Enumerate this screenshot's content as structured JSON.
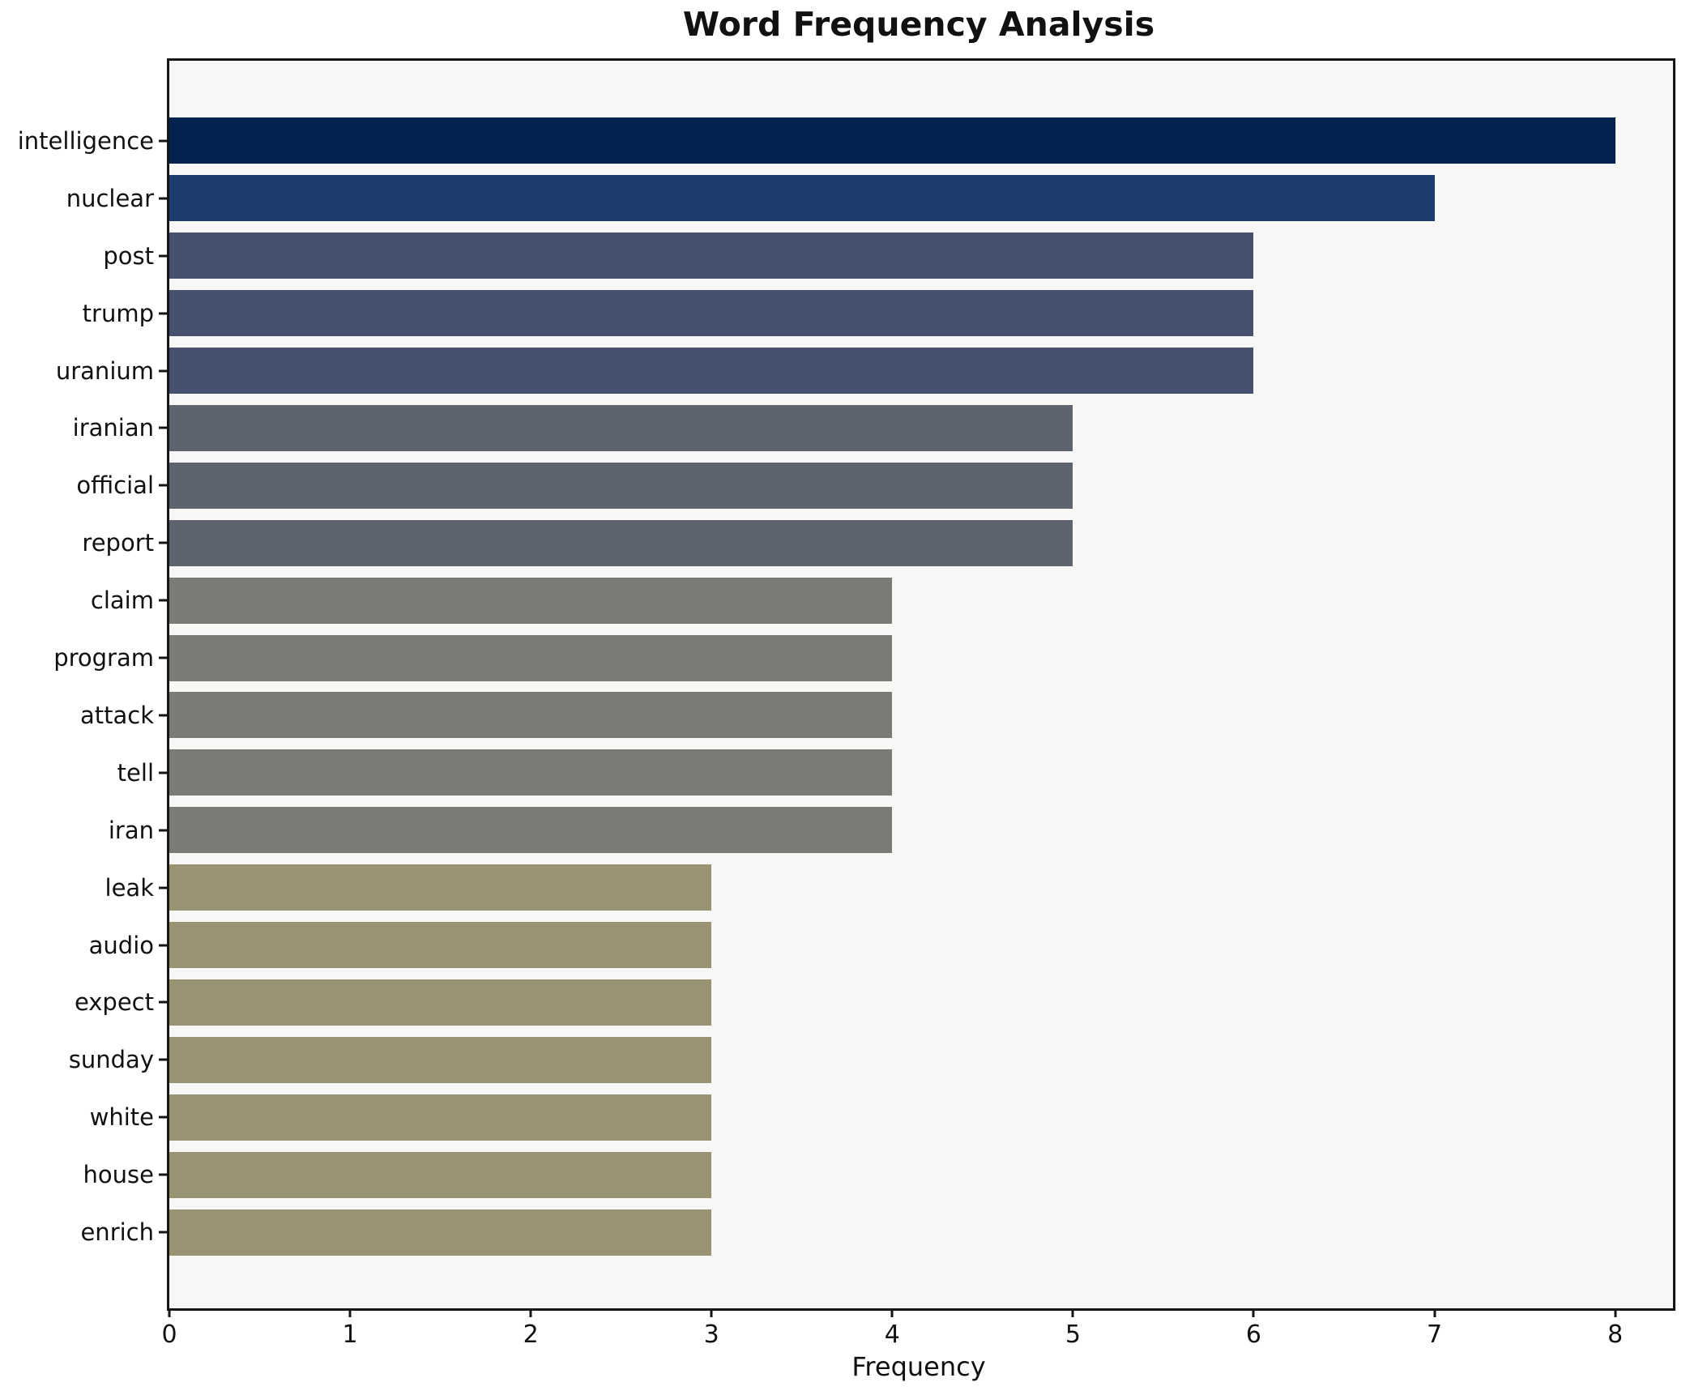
{
  "figure": {
    "background_color": "#ffffff",
    "plot_background_color": "#f7f7f5",
    "spine_color": "#151515",
    "text_color": "#111111"
  },
  "chart_data": {
    "type": "bar",
    "orientation": "horizontal",
    "title": "Word Frequency Analysis",
    "xlabel": "Frequency",
    "ylabel": "",
    "categories": [
      "intelligence",
      "nuclear",
      "post",
      "trump",
      "uranium",
      "iranian",
      "official",
      "report",
      "claim",
      "program",
      "attack",
      "tell",
      "iran",
      "leak",
      "audio",
      "expect",
      "sunday",
      "white",
      "house",
      "enrich"
    ],
    "values": [
      8,
      7,
      6,
      6,
      6,
      5,
      5,
      5,
      4,
      4,
      4,
      4,
      4,
      3,
      3,
      3,
      3,
      3,
      3,
      3
    ],
    "bar_colors": [
      "#03224e",
      "#1c3c6e",
      "#46506f",
      "#46506f",
      "#46506f",
      "#5e6370",
      "#5e6370",
      "#5e6370",
      "#7b7a75",
      "#7b7a75",
      "#7b7a75",
      "#7b7a75",
      "#7b7a75",
      "#9a9372",
      "#9a9372",
      "#9a9372",
      "#9a9372",
      "#9a9372",
      "#9a9372",
      "#9a9372"
    ],
    "color_by_value": {
      "8": "#03224e",
      "7": "#1c3c6e",
      "6": "#46506f",
      "5": "#5e6370",
      "4": "#7b7a75",
      "3": "#9a9372"
    },
    "xticks": [
      0,
      1,
      2,
      3,
      4,
      5,
      6,
      7,
      8
    ],
    "xlim": [
      0,
      8.32
    ],
    "grid": false,
    "legend_position": "none"
  }
}
